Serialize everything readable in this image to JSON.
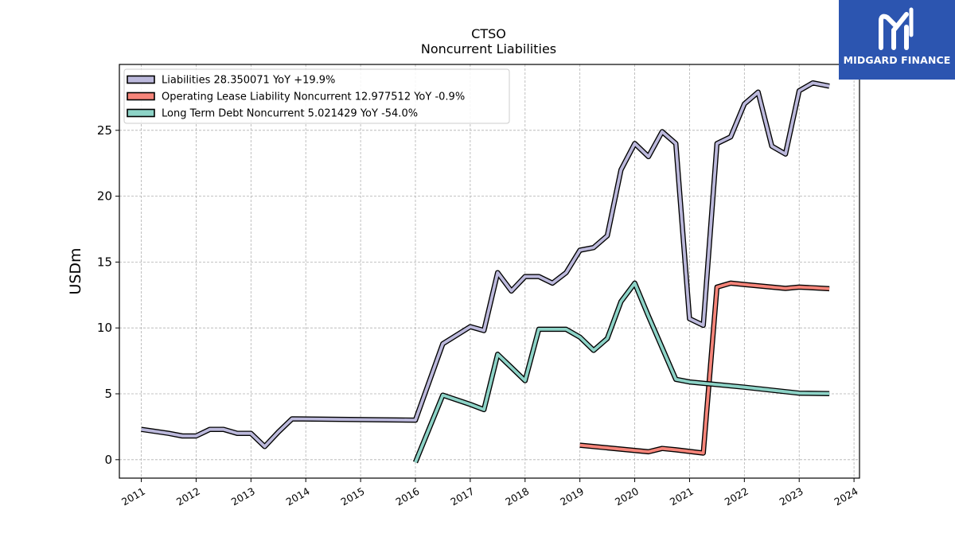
{
  "brand": {
    "name": "MIDGARD FINANCE",
    "color": "#2c55b0",
    "logo_icon": "midgard-m-icon"
  },
  "chart_data": {
    "type": "line",
    "title": "CTSO",
    "subtitle": "Noncurrent  Liabilities",
    "xlabel": "",
    "ylabel": "USDm",
    "ylim": [
      -1.4,
      30
    ],
    "xlim": [
      2010.6,
      2024.1
    ],
    "yticks": [
      0,
      5,
      10,
      15,
      20,
      25
    ],
    "xticks": [
      "2011",
      "2012",
      "2013",
      "2014",
      "2015",
      "2016",
      "2017",
      "2018",
      "2019",
      "2020",
      "2021",
      "2022",
      "2023",
      "2024"
    ],
    "grid": true,
    "legend_position": "top-left",
    "series": [
      {
        "name": "Liabilities",
        "legend_label": "Liabilities  28.350071 YoY +19.9%",
        "color": "#bcb9dc",
        "x": [
          2011.0,
          2011.5,
          2011.75,
          2012.0,
          2012.25,
          2012.5,
          2012.75,
          2013.0,
          2013.25,
          2013.5,
          2013.75,
          2016.0,
          2016.5,
          2017.0,
          2017.25,
          2017.5,
          2017.75,
          2018.0,
          2018.25,
          2018.5,
          2018.75,
          2019.0,
          2019.25,
          2019.5,
          2019.75,
          2020.0,
          2020.25,
          2020.5,
          2020.75,
          2021.0,
          2021.25,
          2021.5,
          2021.75,
          2022.0,
          2022.25,
          2022.5,
          2022.75,
          2023.0,
          2023.25,
          2023.55
        ],
        "y": [
          2.3,
          2.0,
          1.8,
          1.8,
          2.3,
          2.3,
          2.0,
          2.0,
          1.0,
          2.1,
          3.1,
          3.0,
          8.8,
          10.1,
          9.8,
          14.2,
          12.8,
          13.9,
          13.9,
          13.4,
          14.2,
          15.9,
          16.1,
          17.0,
          22.0,
          24.0,
          23.0,
          24.9,
          24.0,
          10.7,
          10.2,
          24.0,
          24.5,
          27.0,
          27.9,
          23.8,
          23.2,
          28.0,
          28.6,
          28.35
        ]
      },
      {
        "name": "Operating Lease Liability Noncurrent",
        "legend_label": "Operating Lease Liability Noncurrent  12.977512 YoY -0.9%",
        "color": "#f6857a",
        "x": [
          2019.0,
          2020.25,
          2020.5,
          2020.75,
          2021.25,
          2021.5,
          2021.75,
          2022.0,
          2022.5,
          2022.75,
          2023.0,
          2023.25,
          2023.55
        ],
        "y": [
          1.1,
          0.6,
          0.85,
          0.75,
          0.5,
          13.1,
          13.4,
          13.3,
          13.1,
          13.0,
          13.1,
          13.05,
          12.98
        ]
      },
      {
        "name": "Long Term Debt Noncurrent",
        "legend_label": "Long Term Debt Noncurrent  5.021429 YoY -54.0%",
        "color": "#8dd3c7",
        "x": [
          2016.0,
          2016.5,
          2017.0,
          2017.25,
          2017.5,
          2017.75,
          2018.0,
          2018.25,
          2018.5,
          2018.75,
          2019.0,
          2019.25,
          2019.5,
          2019.75,
          2020.0,
          2020.25,
          2020.5,
          2020.75,
          2021.0,
          2022.0,
          2023.0,
          2023.55
        ],
        "y": [
          -0.2,
          4.9,
          4.2,
          3.8,
          8.0,
          7.0,
          6.0,
          9.9,
          9.9,
          9.9,
          9.3,
          8.3,
          9.2,
          12.0,
          13.4,
          10.9,
          8.5,
          6.1,
          5.9,
          5.5,
          5.05,
          5.02
        ]
      }
    ]
  }
}
